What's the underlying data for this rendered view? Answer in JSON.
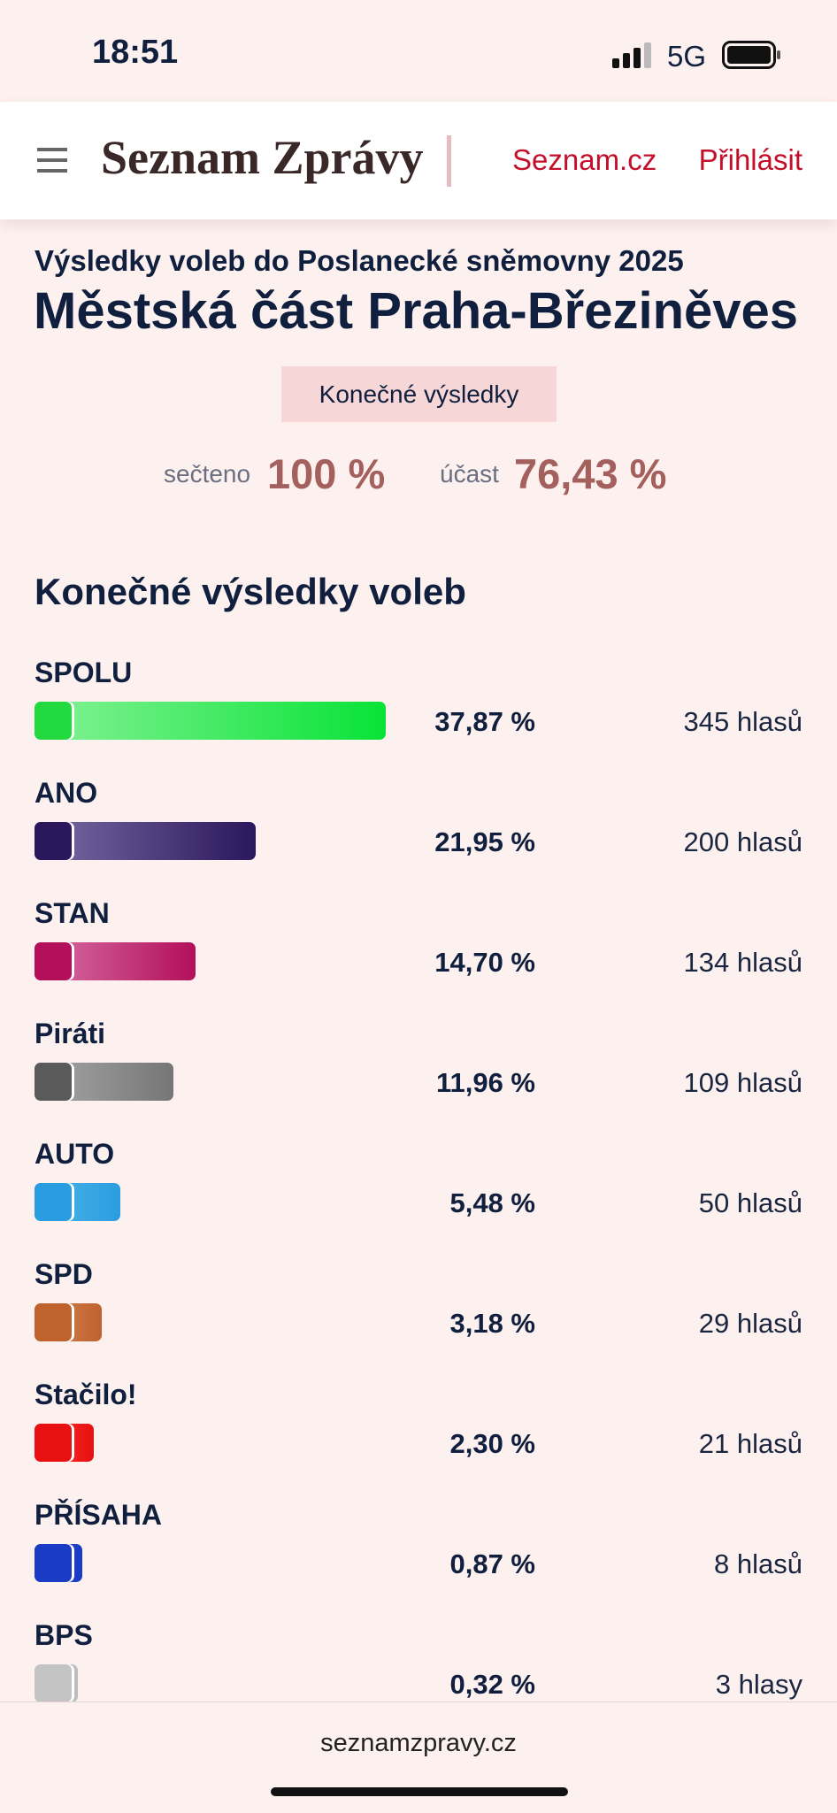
{
  "status_bar": {
    "time": "18:51",
    "network": "5G"
  },
  "header": {
    "brand": "Seznam Zprávy",
    "links": [
      "Seznam.cz",
      "Přihlásit"
    ]
  },
  "subtitle": "Výsledky voleb do Poslanecké sněmovny 2025",
  "title": "Městská část Praha-Březiněves",
  "badge": "Konečné výsledky",
  "stats": [
    {
      "label": "sečteno",
      "value": "100 %"
    },
    {
      "label": "účast",
      "value": "76,43 %"
    }
  ],
  "section_title": "Konečné výsledky voleb",
  "parties": [
    {
      "name": "SPOLU",
      "value": 37.87,
      "value_label": "37,87 %",
      "votes": "345 hlasů",
      "colors": [
        "#86f296",
        "#08e337"
      ],
      "logo_color": "#22d940"
    },
    {
      "name": "ANO",
      "value": 21.95,
      "value_label": "21,95 %",
      "votes": "200 hlasů",
      "colors": [
        "#7c6da6",
        "#2b175c"
      ],
      "logo_color": "#2b175c"
    },
    {
      "name": "STAN",
      "value": 14.7,
      "value_label": "14,70 %",
      "votes": "134 hlasů",
      "colors": [
        "#d872a6",
        "#b30f5a"
      ],
      "logo_color": "#b30f5a"
    },
    {
      "name": "Piráti",
      "value": 11.96,
      "value_label": "11,96 %",
      "votes": "109 hlasů",
      "colors": [
        "#a8a8a8",
        "#767676"
      ],
      "logo_color": "#5a5a5a"
    },
    {
      "name": "AUTO",
      "value": 5.48,
      "value_label": "5,48 %",
      "votes": "50 hlasů",
      "colors": [
        "#52b6e8",
        "#2a9de0"
      ],
      "logo_color": "#2a9de0"
    },
    {
      "name": "SPD",
      "value": 3.18,
      "value_label": "3,18 %",
      "votes": "29 hlasů",
      "colors": [
        "#d4875a",
        "#c0622e"
      ],
      "logo_color": "#c0622e"
    },
    {
      "name": "Stačilo!",
      "value": 2.3,
      "value_label": "2,30 %",
      "votes": "21 hlasů",
      "colors": [
        "#ff3838",
        "#e81010"
      ],
      "logo_color": "#e81010"
    },
    {
      "name": "PŘÍSAHA",
      "value": 0.87,
      "value_label": "0,87 %",
      "votes": "8 hlasů",
      "colors": [
        "#2a4fd6",
        "#1a3cc4"
      ],
      "logo_color": "#1a3cc4"
    },
    {
      "name": "BPS",
      "value": 0.32,
      "value_label": "0,32 %",
      "votes": "3 hlasy",
      "colors": [
        "#d0d0d0",
        "#bcbcbc"
      ],
      "logo_color": "#c4c4c4"
    }
  ],
  "footer": "seznamzpravy.cz"
}
